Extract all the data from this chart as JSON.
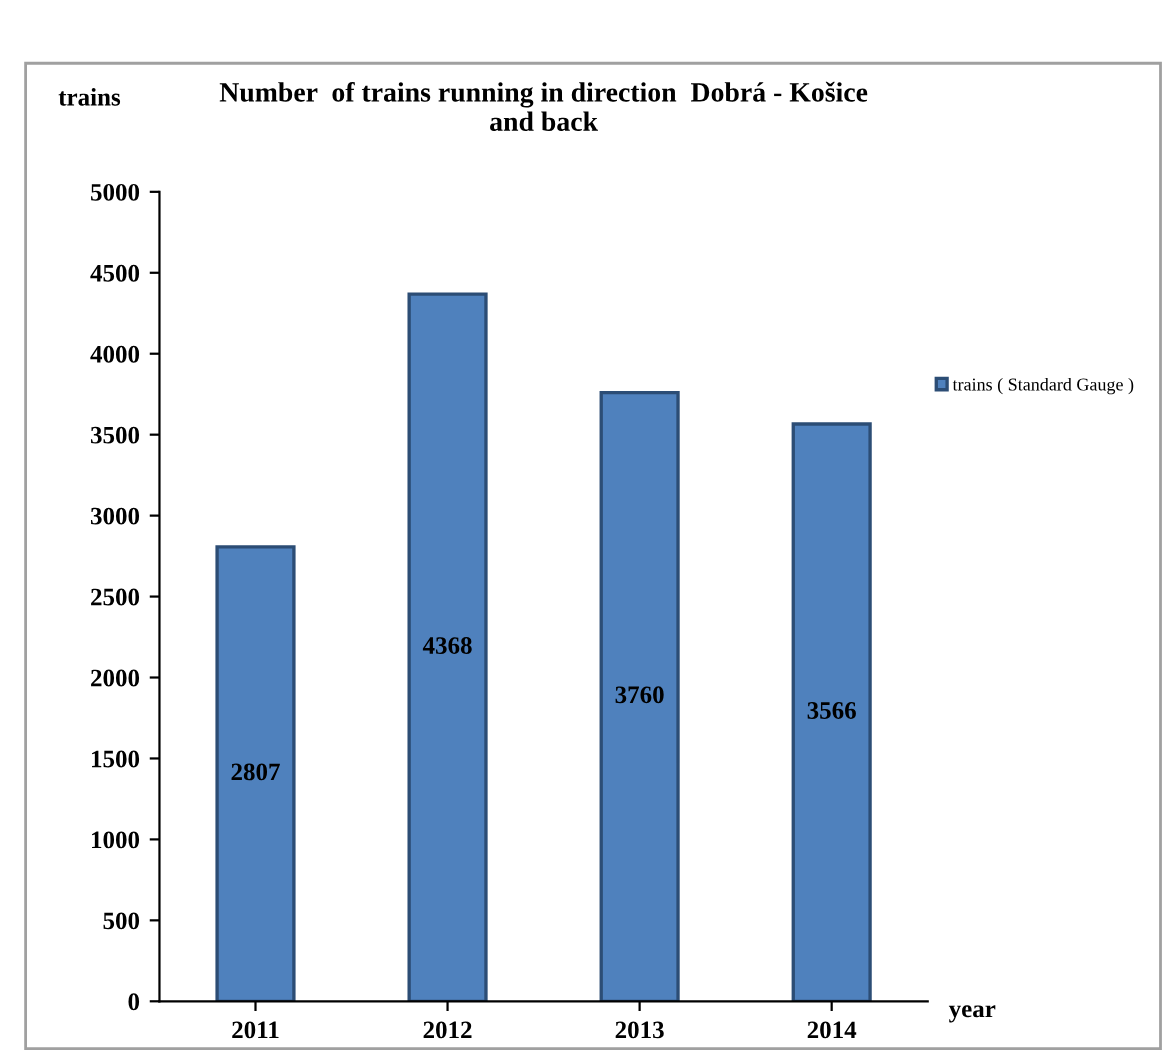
{
  "chart_data": {
    "type": "bar",
    "title": "Number  of trains running in direction  Dobrá - Košice\nand back",
    "xlabel": "year",
    "ylabel": "trains",
    "categories": [
      "2011",
      "2012",
      "2013",
      "2014"
    ],
    "series": [
      {
        "name": "trains ( Standard Gauge )",
        "color": "#4f81bd",
        "values": [
          2807,
          4368,
          3760,
          3566
        ]
      }
    ],
    "ylim": [
      0,
      5000
    ],
    "yticks": [
      0,
      500,
      1000,
      1500,
      2000,
      2500,
      3000,
      3500,
      4000,
      4500,
      5000
    ],
    "data_labels": true,
    "legend": "right",
    "grid": false
  }
}
